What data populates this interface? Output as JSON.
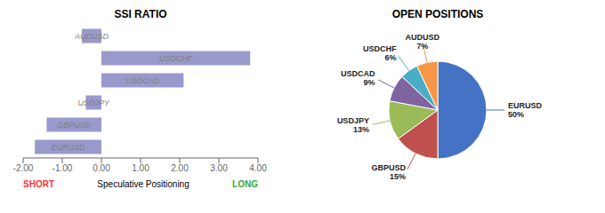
{
  "chart_data": [
    {
      "type": "bar",
      "title": "SSI RATIO",
      "orientation": "horizontal",
      "categories": [
        "AUDUSD",
        "USDCHF",
        "USDCAD",
        "USDJPY",
        "GBPUSD",
        "EURUSD"
      ],
      "values": [
        -0.5,
        3.8,
        2.1,
        -0.4,
        -1.4,
        -1.7
      ],
      "color": "#9999cc",
      "xlim": [
        -2.0,
        4.0
      ],
      "xticks": [
        {
          "value": -2.0,
          "label": "-2.00"
        },
        {
          "value": -1.0,
          "label": "-1.00"
        },
        {
          "value": 0.0,
          "label": "0.00"
        },
        {
          "value": 1.0,
          "label": "1.00"
        },
        {
          "value": 2.0,
          "label": "2.00"
        },
        {
          "value": 3.0,
          "label": "3.00"
        },
        {
          "value": 4.0,
          "label": "4.00"
        }
      ],
      "xlabel": "Speculative Positioning",
      "annotations": [
        {
          "text": "SHORT",
          "color": "#ff3333"
        },
        {
          "text": "LONG",
          "color": "#33aa33"
        }
      ],
      "grid": false,
      "tick_labels": "x"
    },
    {
      "type": "pie",
      "title": "OPEN POSITIONS",
      "categories": [
        "EURUSD",
        "GBPUSD",
        "USDJPY",
        "USDCAD",
        "USDCHF",
        "AUDUSD"
      ],
      "values": [
        50,
        15,
        13,
        9,
        6,
        7
      ],
      "value_labels": [
        "50%",
        "15%",
        "13%",
        "9%",
        "6%",
        "7%"
      ],
      "colors": [
        "#4472c4",
        "#c0504d",
        "#9bbb59",
        "#8064a2",
        "#4bacc6",
        "#f79646"
      ],
      "data_labels": true
    }
  ]
}
